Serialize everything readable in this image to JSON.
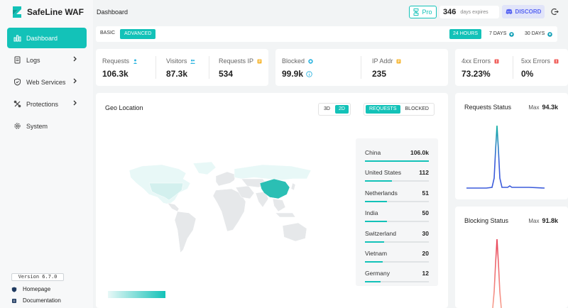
{
  "app": {
    "name": "SafeLine WAF",
    "version": "Version 6.7.0"
  },
  "sidebar": {
    "items": [
      {
        "label": "Dashboard",
        "icon": "chart-bar-icon",
        "active": true,
        "chevron": false
      },
      {
        "label": "Logs",
        "icon": "document-icon",
        "active": false,
        "chevron": true
      },
      {
        "label": "Web Services",
        "icon": "shield-icon",
        "active": false,
        "chevron": true
      },
      {
        "label": "Protections",
        "icon": "tools-icon",
        "active": false,
        "chevron": true
      },
      {
        "label": "System",
        "icon": "gear-icon",
        "active": false,
        "chevron": false
      }
    ],
    "footer": [
      {
        "label": "Homepage",
        "icon": "shield-logo-icon"
      },
      {
        "label": "Documentation",
        "icon": "book-icon"
      }
    ]
  },
  "header": {
    "title": "Dashboard",
    "pro_label": "Pro",
    "days": "346",
    "days_label": "days expires",
    "discord_label": "DISCORD"
  },
  "modebar": {
    "basic": "BASIC",
    "advanced": "ADVANCED",
    "ranges": [
      "24 HOURS",
      "7 DAYS",
      "30 DAYS"
    ]
  },
  "stats": {
    "requests": {
      "label": "Requests",
      "value": "106.3k"
    },
    "visitors": {
      "label": "Visitors",
      "value": "87.3k"
    },
    "requests_ip": {
      "label": "Requests IP",
      "value": "534"
    },
    "blocked": {
      "label": "Blocked",
      "value": "99.9k"
    },
    "ip_addr": {
      "label": "IP Addr",
      "value": "235"
    },
    "errors_4xx": {
      "label": "4xx Errors",
      "value": "73.23%"
    },
    "errors_5xx": {
      "label": "5xx Errors",
      "value": "0%"
    }
  },
  "geo": {
    "title": "Geo Location",
    "view_3d": "3D",
    "view_2d": "2D",
    "mode_requests": "REQUESTS",
    "mode_blocked": "BLOCKED",
    "countries": [
      {
        "name": "China",
        "value": "106.0k",
        "fraction": 1.0
      },
      {
        "name": "United States",
        "value": "112",
        "fraction": 0.42
      },
      {
        "name": "Netherlands",
        "value": "51",
        "fraction": 0.34
      },
      {
        "name": "India",
        "value": "50",
        "fraction": 0.34
      },
      {
        "name": "Switzerland",
        "value": "30",
        "fraction": 0.3
      },
      {
        "name": "Vietnam",
        "value": "20",
        "fraction": 0.28
      },
      {
        "name": "Germany",
        "value": "12",
        "fraction": 0.24
      }
    ]
  },
  "requests_status": {
    "title": "Requests Status",
    "max_label": "Max",
    "max_value": "94.3k",
    "color": "#3b5bdb"
  },
  "blocking_status": {
    "title": "Blocking Status",
    "max_label": "Max",
    "max_value": "91.8k",
    "color": "#f06a6a"
  },
  "colors": {
    "accent": "#13c2b8",
    "teal_line": "#17b3a6"
  }
}
